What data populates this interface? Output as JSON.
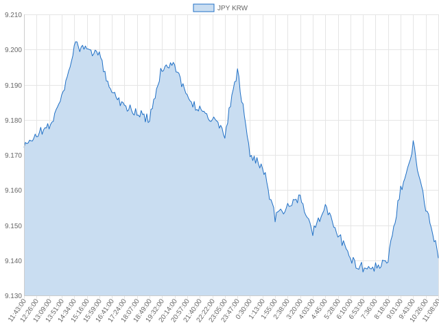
{
  "chart_data": {
    "type": "area",
    "legend": {
      "position": "top",
      "label": "JPY KRW"
    },
    "series": [
      {
        "name": "JPY KRW",
        "color": "#1f6fc5",
        "fill": "#c9ddf1",
        "anchors": [
          [
            "11:43:00",
            9.172
          ],
          [
            "12:26:00",
            9.176
          ],
          [
            "13:09:00",
            9.178
          ],
          [
            "13:51:00",
            9.186
          ],
          [
            "14:34:00",
            9.201
          ],
          [
            "15:16:00",
            9.2
          ],
          [
            "15:59:00",
            9.198
          ],
          [
            "16:41:00",
            9.188
          ],
          [
            "17:24:00",
            9.184
          ],
          [
            "18:07:00",
            9.182
          ],
          [
            "18:49:00",
            9.18
          ],
          [
            "19:32:00",
            9.195
          ],
          [
            "20:14:00",
            9.196
          ],
          [
            "20:57:00",
            9.186
          ],
          [
            "21:40:00",
            9.183
          ],
          [
            "22:22:00",
            9.18
          ],
          [
            "23:05:00",
            9.176
          ],
          [
            "23:47:00",
            9.194
          ],
          [
            "0:30:00",
            9.17
          ],
          [
            "1:13:00",
            9.167
          ],
          [
            "1:55:00",
            9.152
          ],
          [
            "2:38:00",
            9.155
          ],
          [
            "3:20:00",
            9.158
          ],
          [
            "4:03:00",
            9.148
          ],
          [
            "4:45:00",
            9.155
          ],
          [
            "5:28:00",
            9.148
          ],
          [
            "6:10:00",
            9.14
          ],
          [
            "6:53:00",
            9.138
          ],
          [
            "7:36:00",
            9.138
          ],
          [
            "8:18:00",
            9.14
          ],
          [
            "9:01:00",
            9.16
          ],
          [
            "9:43:00",
            9.173
          ],
          [
            "10:26:00",
            9.155
          ],
          [
            "11:08:00",
            9.142
          ]
        ]
      }
    ],
    "x_tick_labels": [
      "11:43:00",
      "12:26:00",
      "13:09:00",
      "13:51:00",
      "14:34:00",
      "15:16:00",
      "15:59:00",
      "16:41:00",
      "17:24:00",
      "18:07:00",
      "18:49:00",
      "19:32:00",
      "20:14:00",
      "20:57:00",
      "21:40:00",
      "22:22:00",
      "23:05:00",
      "23:47:00",
      "0:30:00",
      "1:13:00",
      "1:55:00",
      "2:38:00",
      "3:20:00",
      "4:03:00",
      "4:45:00",
      "5:28:00",
      "6:10:00",
      "6:53:00",
      "7:36:00",
      "8:18:00",
      "9:01:00",
      "9:43:00",
      "10:26:00",
      "11:08:00"
    ],
    "y_tick_labels": [
      "9.130",
      "9.140",
      "9.150",
      "9.160",
      "9.170",
      "9.180",
      "9.190",
      "9.200",
      "9.210"
    ],
    "ylim": [
      9.13,
      9.21
    ],
    "grid": true
  }
}
